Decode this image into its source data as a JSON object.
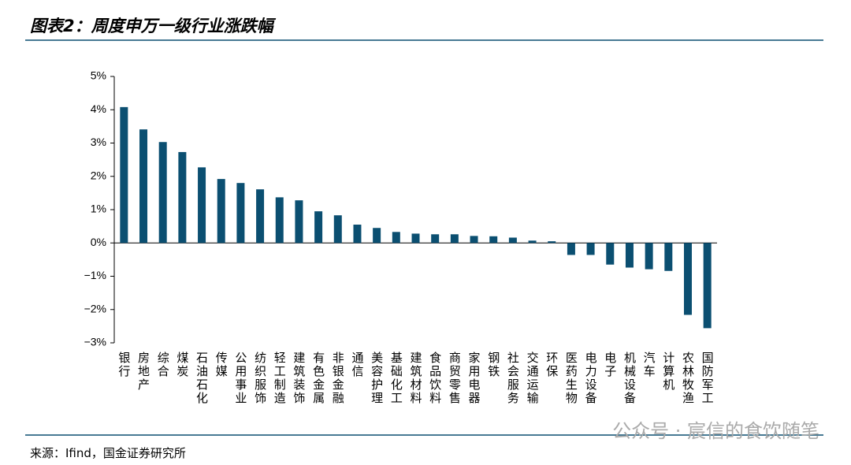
{
  "chart_data": {
    "type": "bar",
    "title": "图表2：周度申万一级行业涨跌幅",
    "source": "来源：Ifind，国金证券研究所",
    "watermark": "公众号 · 宸信的食饮随笔",
    "categories": [
      "银行",
      "房地产",
      "综合",
      "煤炭",
      "石油石化",
      "传媒",
      "公用事业",
      "纺织服饰",
      "轻工制造",
      "建筑装饰",
      "有色金属",
      "非银金融",
      "通信",
      "美容护理",
      "基础化工",
      "建筑材料",
      "食品饮料",
      "商贸零售",
      "家用电器",
      "钢铁",
      "社会服务",
      "交通运输",
      "环保",
      "医药生物",
      "电力设备",
      "电子",
      "机械设备",
      "汽车",
      "计算机",
      "农林牧渔",
      "国防军工"
    ],
    "values": [
      4.08,
      3.41,
      3.03,
      2.73,
      2.27,
      1.92,
      1.8,
      1.61,
      1.37,
      1.28,
      0.95,
      0.83,
      0.55,
      0.45,
      0.33,
      0.28,
      0.26,
      0.26,
      0.21,
      0.2,
      0.16,
      0.07,
      0.05,
      -0.36,
      -0.36,
      -0.65,
      -0.74,
      -0.79,
      -0.84,
      -2.16,
      -2.56
    ],
    "color": "#0b4f71",
    "ylim": [
      -3,
      5
    ],
    "yticks": [
      {
        "value": -3,
        "label": "−3%"
      },
      {
        "value": -2,
        "label": "−2%"
      },
      {
        "value": -1,
        "label": "−1%"
      },
      {
        "value": 0,
        "label": "0%"
      },
      {
        "value": 1,
        "label": "1%"
      },
      {
        "value": 2,
        "label": "2%"
      },
      {
        "value": 3,
        "label": "3%"
      },
      {
        "value": 4,
        "label": "4%"
      },
      {
        "value": 5,
        "label": "5%"
      }
    ],
    "grid": false
  }
}
